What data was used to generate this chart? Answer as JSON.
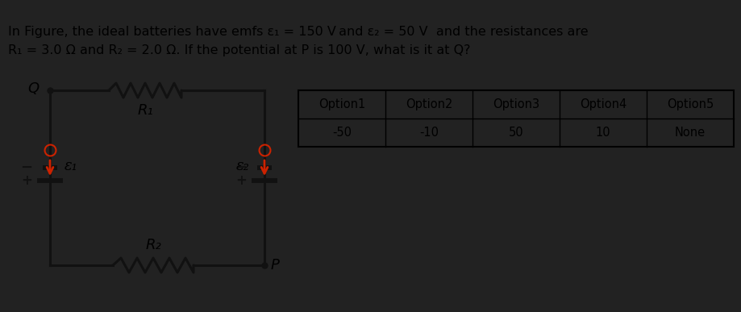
{
  "bg_color": "#ffffff",
  "dark_bar_color": "#222222",
  "line_color": "#111111",
  "battery_arrow_color": "#cc2200",
  "table_headers": [
    "Option1",
    "Option2",
    "Option3",
    "Option4",
    "Option5"
  ],
  "table_values": [
    "-50",
    "-10",
    "50",
    "10",
    "None"
  ],
  "q_text": "Q",
  "p_text": "P",
  "r1_text": "R₁",
  "r2_text": "R₂",
  "e1_text": "ε₁",
  "e2_text": "ε₂",
  "plus": "+",
  "minus": "−",
  "title_line1": "In Figure, the ideal batteries have emfs ε₁ = 150 V and ε₂ = 50 V  and the resistances are",
  "title_line2": "R₁ = 3.0 Ω and R₂ = 2.0 Ω. If the potential at P is 100 V, what is it at Q?"
}
